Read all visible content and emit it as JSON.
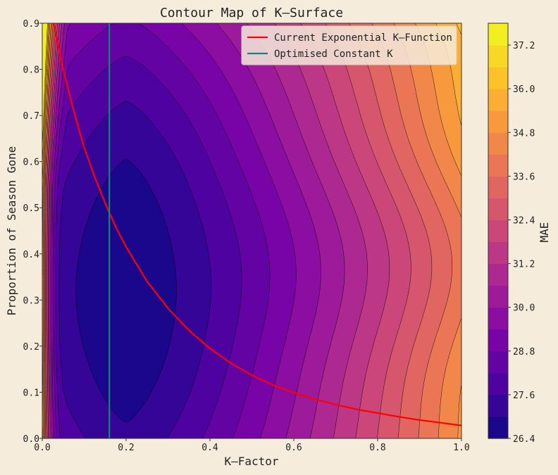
{
  "chart_data": {
    "type": "heatmap",
    "subtype": "filled-contour",
    "title": "Contour Map of K—Surface",
    "xlabel": "K—Factor",
    "ylabel": "Proportion of Season Gone",
    "xlim": [
      0.0,
      1.0
    ],
    "ylim": [
      0.0,
      0.9
    ],
    "x_ticks": [
      "0.0",
      "0.2",
      "0.4",
      "0.6",
      "0.8",
      "1.0"
    ],
    "y_ticks": [
      "0.0",
      "0.1",
      "0.2",
      "0.3",
      "0.4",
      "0.5",
      "0.6",
      "0.7",
      "0.8",
      "0.9"
    ],
    "colormap": "plasma",
    "colorbar": {
      "label": "MAE",
      "min": 26.4,
      "max": 37.8,
      "tick_values": [
        26.4,
        27.6,
        28.8,
        30.0,
        31.2,
        32.4,
        33.6,
        34.8,
        36.0,
        37.2
      ],
      "tick_labels": [
        "26.4",
        "27.6",
        "28.8",
        "30.0",
        "31.2",
        "32.4",
        "33.6",
        "34.8",
        "36.0",
        "37.2"
      ],
      "level_step": 0.6
    },
    "surface_minimum": {
      "x": 0.2,
      "y": 0.32,
      "value": 26.4
    },
    "legend": {
      "position": "top-right",
      "entries": [
        {
          "label": "Current Exponential K—Function",
          "color": "#ff0000"
        },
        {
          "label": "Optimised Constant K",
          "color": "#1a8080"
        }
      ]
    },
    "series": [
      {
        "name": "Current Exponential K—Function",
        "type": "line",
        "x": [
          0.027,
          0.05,
          0.075,
          0.1,
          0.125,
          0.15,
          0.175,
          0.2,
          0.25,
          0.3,
          0.35,
          0.4,
          0.45,
          0.5,
          0.55,
          0.6,
          0.65,
          0.7,
          0.75,
          0.8,
          0.85,
          0.9,
          0.95,
          1.0
        ],
        "y": [
          0.9,
          0.8,
          0.71,
          0.63,
          0.567,
          0.51,
          0.459,
          0.415,
          0.34,
          0.282,
          0.234,
          0.195,
          0.163,
          0.137,
          0.116,
          0.099,
          0.085,
          0.073,
          0.063,
          0.055,
          0.047,
          0.04,
          0.034,
          0.028
        ]
      },
      {
        "name": "Optimised Constant K",
        "type": "vline",
        "x": 0.16
      }
    ]
  }
}
